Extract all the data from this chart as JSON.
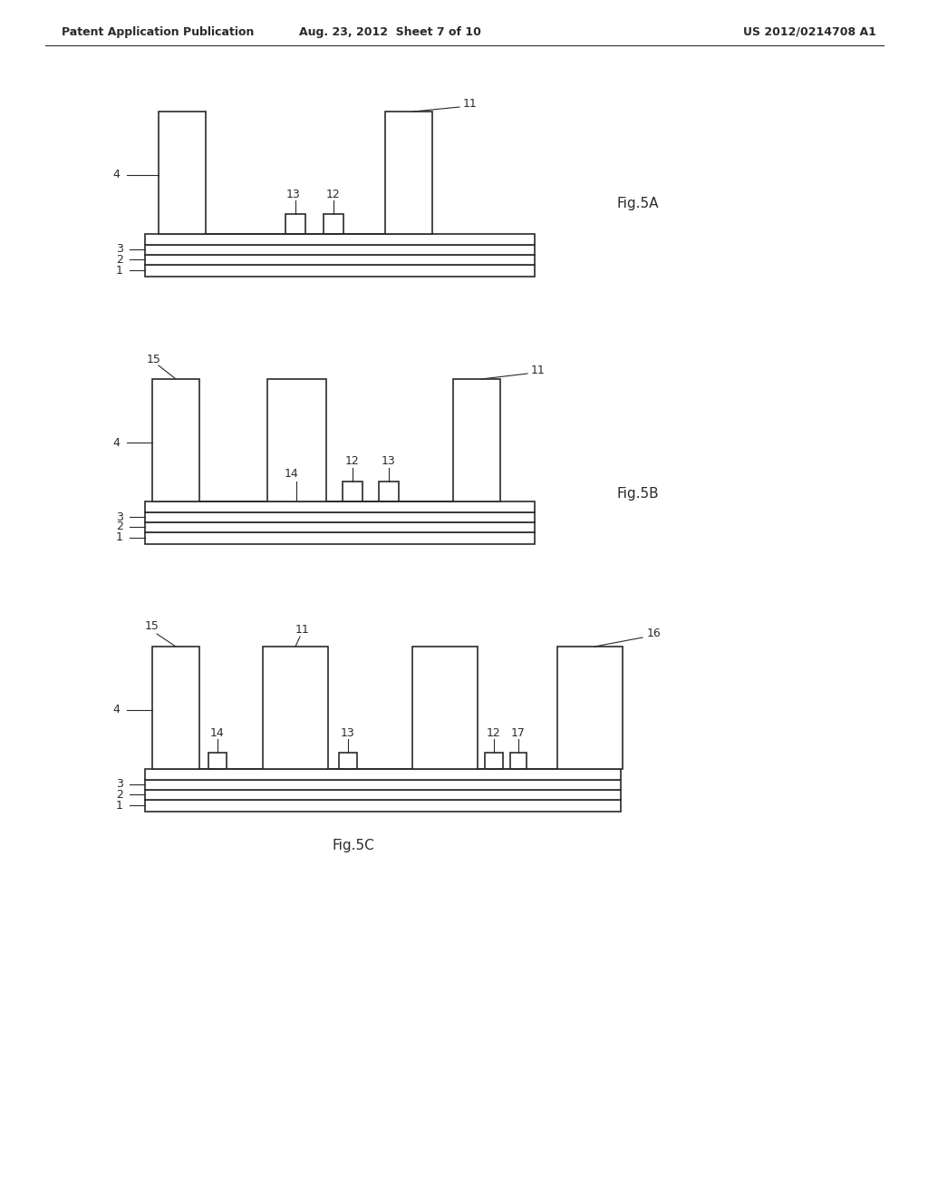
{
  "bg_color": "#ffffff",
  "header_left": "Patent Application Publication",
  "header_mid": "Aug. 23, 2012  Sheet 7 of 10",
  "header_right": "US 2012/0214708 A1",
  "line_color": "#2a2a2a",
  "lw": 1.2
}
